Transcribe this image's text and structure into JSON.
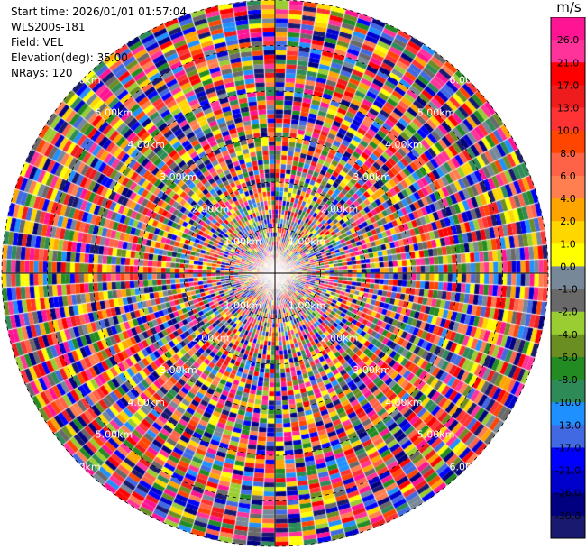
{
  "info": {
    "start_time": "Start time: 2026/01/01 01:57:04",
    "station": "WLS200s-181",
    "field": "Field: VEL",
    "elevation": "Elevation(deg): 35.00",
    "nrays": "NRays: 120"
  },
  "chart_data": {
    "type": "heatmap",
    "projection": "polar-ppi",
    "field": "VEL",
    "unit": "m/s",
    "n_rays": 120,
    "n_gates": 60,
    "max_range_km": 6.0,
    "range_rings_km": [
      1,
      2,
      3,
      4,
      5,
      6
    ],
    "range_labels": [
      "1.00km",
      "2.00km",
      "3.00km",
      "4.00km",
      "5.00km",
      "6.00km"
    ],
    "colorbar": {
      "tick_labels": [
        "26.0",
        "21.0",
        "17.0",
        "13.0",
        "10.0",
        "8.0",
        "6.0",
        "4.0",
        "2.0",
        "1.0",
        "0.0",
        "-1.0",
        "-2.0",
        "-4.0",
        "-6.0",
        "-8.0",
        "-10.0",
        "-13.0",
        "-17.0",
        "-21.0",
        "-26.0",
        "-30.0"
      ],
      "colors": [
        "#ff1493",
        "#ff3399",
        "#ff0000",
        "#ee1c1c",
        "#ff3333",
        "#ff4500",
        "#ff6347",
        "#ff7f50",
        "#ffa500",
        "#ffd700",
        "#ffff00",
        "#778899",
        "#696969",
        "#9acd32",
        "#6b8e23",
        "#228b22",
        "#2e8b57",
        "#1e90ff",
        "#4169e1",
        "#0000ff",
        "#0000cd",
        "#000080",
        "#191970"
      ]
    }
  }
}
